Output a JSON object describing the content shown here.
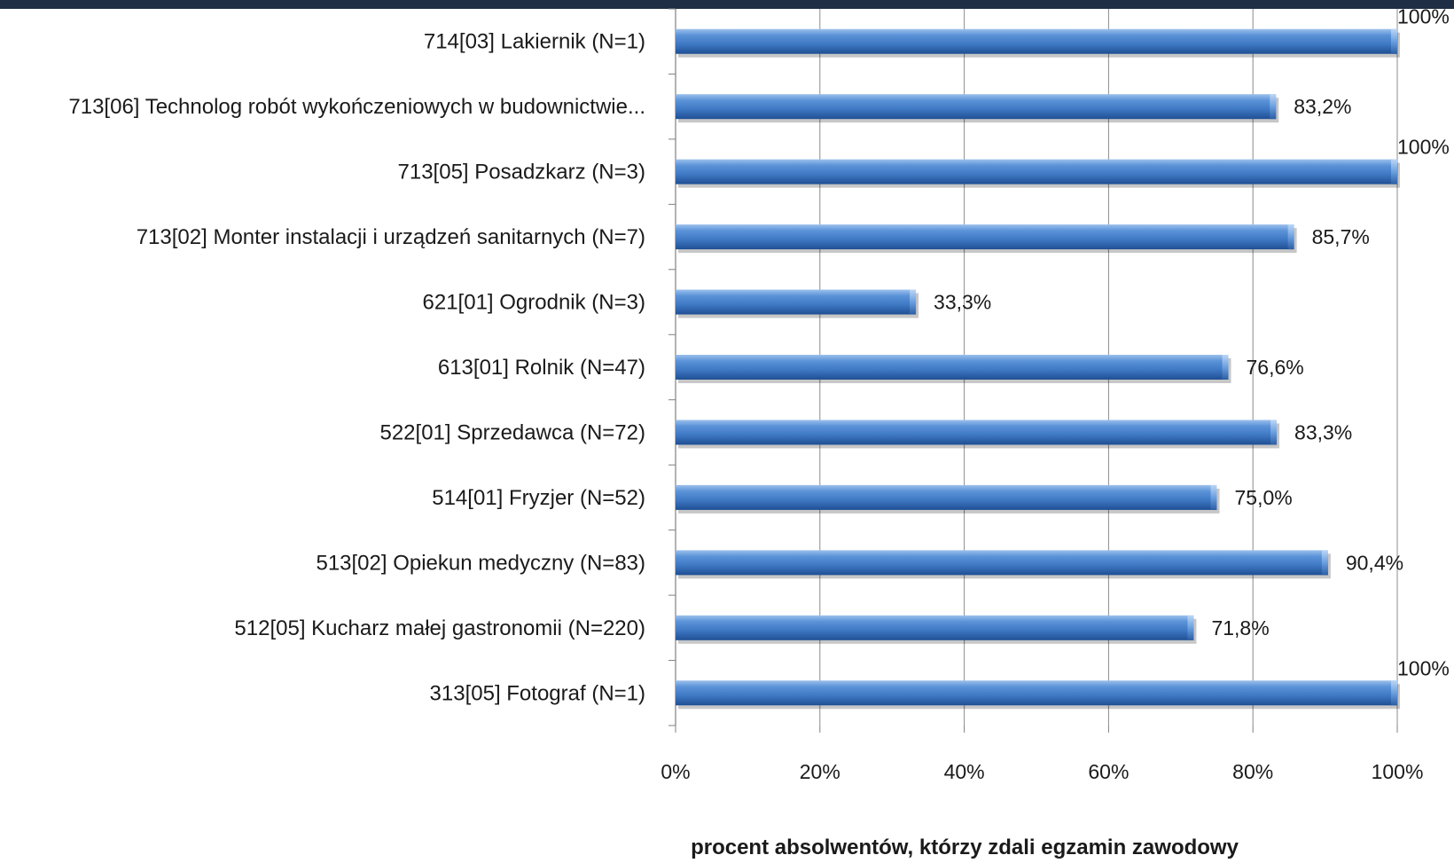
{
  "chart_data": {
    "type": "bar",
    "orientation": "horizontal",
    "categories": [
      "714[03] Lakiernik (N=1)",
      "713[06] Technolog robót wykończeniowych w budownictwie...",
      "713[05] Posadzkarz (N=3)",
      "713[02] Monter instalacji i urządzeń sanitarnych (N=7)",
      "621[01] Ogrodnik (N=3)",
      "613[01] Rolnik (N=47)",
      "522[01] Sprzedawca (N=72)",
      "514[01] Fryzjer (N=52)",
      "513[02] Opiekun medyczny (N=83)",
      "512[05] Kucharz małej gastronomii (N=220)",
      "313[05] Fotograf (N=1)"
    ],
    "values": [
      100,
      83.2,
      100,
      85.7,
      33.3,
      76.6,
      83.3,
      75.0,
      90.4,
      71.8,
      100
    ],
    "data_labels": [
      "100%",
      "83,2%",
      "100%",
      "85,7%",
      "33,3%",
      "76,6%",
      "83,3%",
      "75,0%",
      "90,4%",
      "71,8%",
      "100%"
    ],
    "xlim": [
      0,
      100
    ],
    "xticks": [
      "0%",
      "20%",
      "40%",
      "60%",
      "80%",
      "100%"
    ],
    "title": "",
    "xlabel": "procent absolwentów, którzy zdali egzamin zawodowy",
    "ylabel": "",
    "grid": "vertical",
    "bar_color": "#3f79c4",
    "top_band_color": "#1f2d45"
  }
}
